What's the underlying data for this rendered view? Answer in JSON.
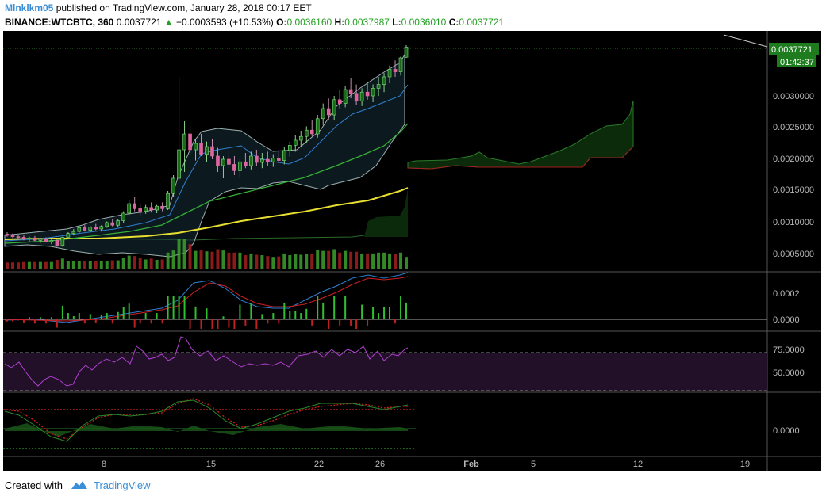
{
  "header": {
    "author": "Mlnklkm05",
    "published_text": "published on TradingView.com, January 28, 2018 00:17 EET",
    "symbol": "BINANCE:WTCBTC, 360",
    "last": "0.0037721",
    "change": "+0.0003593 (+10.53%)",
    "o_label": "O:",
    "o_value": "0.0036160",
    "h_label": "H:",
    "h_value": "0.0037987",
    "l_label": "L:",
    "l_value": "0.0036010",
    "c_label": "C:",
    "c_value": "0.0037721"
  },
  "price_badge": {
    "value": "0.0037721",
    "countdown": "01:42:37"
  },
  "footer": {
    "created_with": "Created with",
    "brand": "TradingView"
  },
  "colors": {
    "up": "#3ca12d",
    "down": "#a31e1e",
    "ma_yellow": "#e8e030",
    "ma_green": "#35b035",
    "bb": "#c8d8c0",
    "ma_blue": "#2f7fd0",
    "rsi": "#b040d0",
    "price_badge": "#1e7b1e"
  },
  "chart_data": {
    "type": "candlestick",
    "x_ticks": [
      "8",
      "15",
      "22",
      "26",
      "Feb",
      "5",
      "12",
      "19"
    ],
    "panes": [
      {
        "name": "price",
        "y_ticks": [
          "0.0030000",
          "0.0025000",
          "0.0020000",
          "0.0015000",
          "0.0010000",
          "0.0005000"
        ],
        "y_range": [
          0.0001,
          0.0039
        ],
        "candles_approx": [
          [
            0.00082,
            0.00085,
            0.00078,
            0.0008
          ],
          [
            0.0008,
            0.00083,
            0.00076,
            0.00078
          ],
          [
            0.00078,
            0.00081,
            0.00074,
            0.00077
          ],
          [
            0.00077,
            0.0008,
            0.00072,
            0.00074
          ],
          [
            0.00074,
            0.00078,
            0.0007,
            0.00076
          ],
          [
            0.00076,
            0.00079,
            0.00071,
            0.00072
          ],
          [
            0.00072,
            0.00076,
            0.00068,
            0.00074
          ],
          [
            0.00074,
            0.00077,
            0.00069,
            0.0007
          ],
          [
            0.0007,
            0.00074,
            0.00066,
            0.00072
          ],
          [
            0.00072,
            0.00075,
            0.00062,
            0.00064
          ],
          [
            0.00064,
            0.00078,
            0.00062,
            0.00077
          ],
          [
            0.00077,
            0.00085,
            0.00075,
            0.00083
          ],
          [
            0.00083,
            0.0009,
            0.0008,
            0.00086
          ],
          [
            0.00086,
            0.00094,
            0.00084,
            0.00092
          ],
          [
            0.00092,
            0.00096,
            0.00086,
            0.00088
          ],
          [
            0.00088,
            0.00095,
            0.00085,
            0.00093
          ],
          [
            0.00093,
            0.00098,
            0.00088,
            0.0009
          ],
          [
            0.0009,
            0.00096,
            0.00086,
            0.00094
          ],
          [
            0.00094,
            0.00102,
            0.00092,
            0.001
          ],
          [
            0.001,
            0.00106,
            0.00094,
            0.00096
          ],
          [
            0.00096,
            0.00105,
            0.00093,
            0.00103
          ],
          [
            0.00103,
            0.00118,
            0.001,
            0.00115
          ],
          [
            0.00115,
            0.00135,
            0.00112,
            0.0013
          ],
          [
            0.0013,
            0.0014,
            0.00118,
            0.00122
          ],
          [
            0.00122,
            0.0013,
            0.00112,
            0.00118
          ],
          [
            0.00118,
            0.00128,
            0.00114,
            0.00124
          ],
          [
            0.00124,
            0.00132,
            0.00116,
            0.0012
          ],
          [
            0.0012,
            0.00128,
            0.00115,
            0.00126
          ],
          [
            0.00126,
            0.00132,
            0.00118,
            0.00122
          ],
          [
            0.00122,
            0.0015,
            0.0012,
            0.00146
          ],
          [
            0.00146,
            0.00175,
            0.0014,
            0.0017
          ],
          [
            0.0017,
            0.0033,
            0.00165,
            0.00215
          ],
          [
            0.00215,
            0.0026,
            0.0018,
            0.0024
          ],
          [
            0.0024,
            0.00255,
            0.00205,
            0.00215
          ],
          [
            0.00215,
            0.00232,
            0.00198,
            0.00225
          ],
          [
            0.00225,
            0.0024,
            0.00205,
            0.00208
          ],
          [
            0.00208,
            0.00228,
            0.00195,
            0.0022
          ],
          [
            0.0022,
            0.00232,
            0.002,
            0.00205
          ],
          [
            0.00205,
            0.00218,
            0.0018,
            0.0019
          ],
          [
            0.0019,
            0.00205,
            0.0017,
            0.002
          ],
          [
            0.002,
            0.00215,
            0.00185,
            0.00192
          ],
          [
            0.00192,
            0.00205,
            0.00175,
            0.00182
          ],
          [
            0.00182,
            0.002,
            0.0017,
            0.00196
          ],
          [
            0.00196,
            0.0021,
            0.00186,
            0.0019
          ],
          [
            0.0019,
            0.00212,
            0.00184,
            0.00205
          ],
          [
            0.00205,
            0.00215,
            0.0019,
            0.00195
          ],
          [
            0.00195,
            0.0021,
            0.00186,
            0.002
          ],
          [
            0.002,
            0.00212,
            0.0019,
            0.00196
          ],
          [
            0.00196,
            0.00208,
            0.00188,
            0.00202
          ],
          [
            0.00202,
            0.00215,
            0.00194,
            0.00198
          ],
          [
            0.00198,
            0.0022,
            0.00192,
            0.00214
          ],
          [
            0.00214,
            0.00228,
            0.00204,
            0.00222
          ],
          [
            0.00222,
            0.00238,
            0.00212,
            0.0023
          ],
          [
            0.0023,
            0.00245,
            0.0022,
            0.00236
          ],
          [
            0.00236,
            0.00252,
            0.00226,
            0.00246
          ],
          [
            0.00246,
            0.00262,
            0.00236,
            0.0024
          ],
          [
            0.0024,
            0.0027,
            0.00234,
            0.00264
          ],
          [
            0.00264,
            0.00288,
            0.00254,
            0.0028
          ],
          [
            0.0028,
            0.00296,
            0.00262,
            0.0027
          ],
          [
            0.0027,
            0.003,
            0.00262,
            0.00294
          ],
          [
            0.00294,
            0.0031,
            0.0028,
            0.00288
          ],
          [
            0.00288,
            0.00316,
            0.00282,
            0.0031
          ],
          [
            0.0031,
            0.00328,
            0.00296,
            0.00304
          ],
          [
            0.00304,
            0.00318,
            0.00286,
            0.00292
          ],
          [
            0.00292,
            0.00312,
            0.00284,
            0.00306
          ],
          [
            0.00306,
            0.00322,
            0.00294,
            0.003
          ],
          [
            0.003,
            0.00318,
            0.0029,
            0.00312
          ],
          [
            0.00312,
            0.0033,
            0.003,
            0.00318
          ],
          [
            0.00318,
            0.00336,
            0.00306,
            0.0033
          ],
          [
            0.0033,
            0.00348,
            0.0032,
            0.00342
          ],
          [
            0.00342,
            0.00356,
            0.0033,
            0.00338
          ],
          [
            0.00338,
            0.00362,
            0.00332,
            0.0036
          ],
          [
            0.00361,
            0.0038,
            0.0036,
            0.00377
          ]
        ]
      },
      {
        "name": "macd",
        "y_ticks": [
          "0.0002",
          "0.0000"
        ]
      },
      {
        "name": "rsi",
        "y_ticks": [
          "75.0000",
          "50.0000"
        ]
      },
      {
        "name": "oscillator",
        "y_ticks": [
          "0.0000"
        ]
      }
    ]
  }
}
